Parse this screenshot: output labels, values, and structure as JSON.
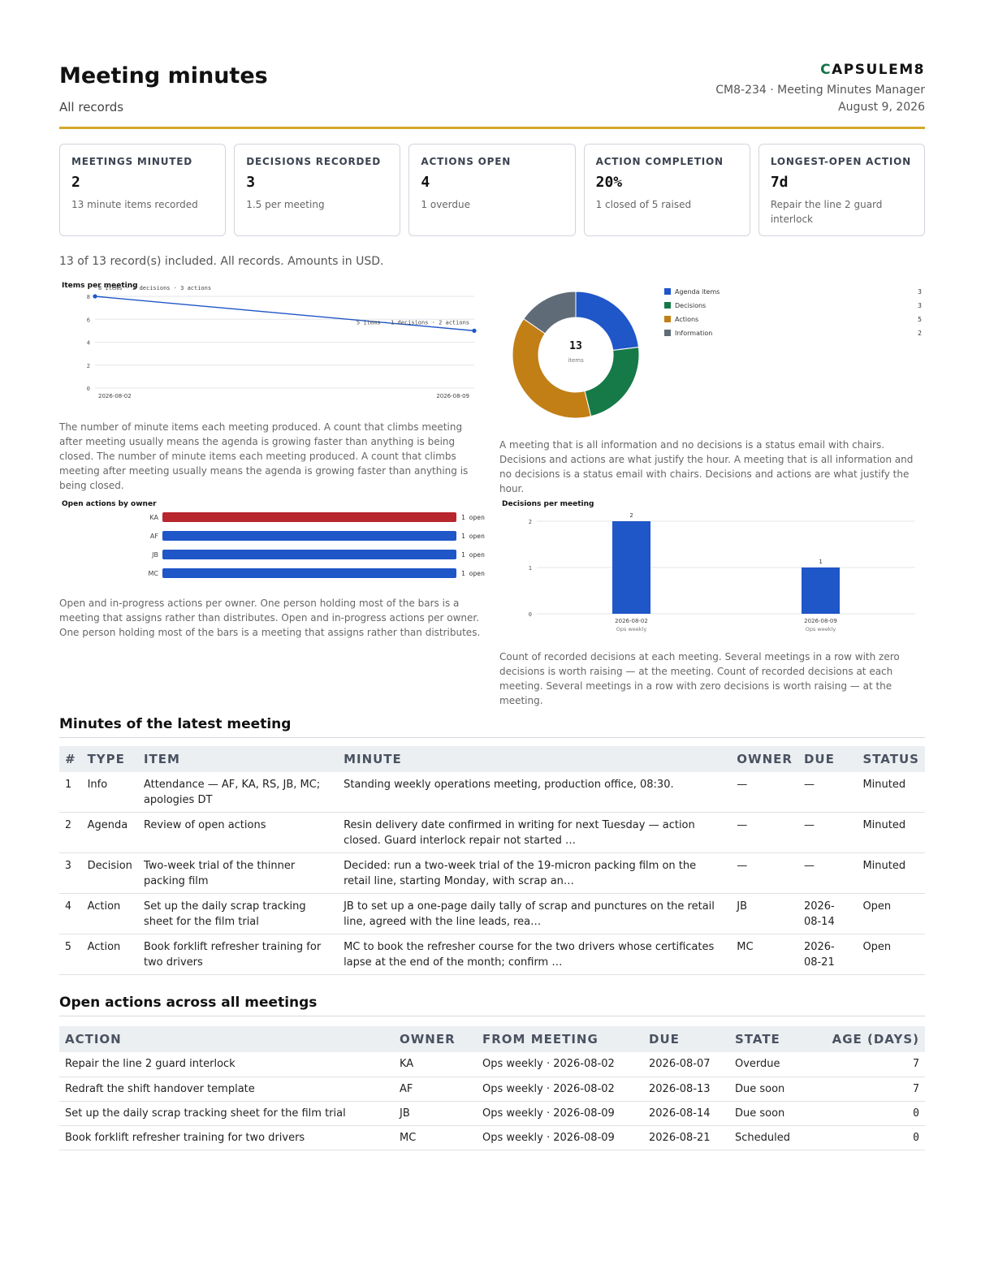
{
  "header": {
    "title": "Meeting minutes",
    "subtitle": "All records",
    "brand_c": "C",
    "brand_rest": "APSULEM8",
    "doc_ref": "CM8-234 · Meeting Minutes Manager",
    "date": "August 9, 2026"
  },
  "kpis": [
    {
      "label": "MEETINGS MINUTED",
      "value": "2",
      "note": "13 minute items recorded"
    },
    {
      "label": "DECISIONS RECORDED",
      "value": "3",
      "note": "1.5 per meeting"
    },
    {
      "label": "ACTIONS OPEN",
      "value": "4",
      "note": "1 overdue"
    },
    {
      "label": "ACTION COMPLETION",
      "value": "20%",
      "note": "1 closed of 5 raised"
    },
    {
      "label": "LONGEST-OPEN ACTION",
      "value": "7d",
      "note": "Repair the line 2 guard interlock"
    }
  ],
  "scope_note": "13 of 13 record(s) included. All records. Amounts in USD.",
  "captions": {
    "items": "The number of minute items each meeting produced. A count that climbs meeting after meeting usually means the agenda is growing faster than anything is being closed. The number of minute items each meeting produced. A count that climbs meeting after meeting usually means the agenda is growing faster than anything is being closed.",
    "donut": "A meeting that is all information and no decisions is a status email with chairs. Decisions and actions are what justify the hour. A meeting that is all information and no decisions is a status email with chairs. Decisions and actions are what justify the hour.",
    "owners": "Open and in-progress actions per owner. One person holding most of the bars is a meeting that assigns rather than distributes. Open and in-progress actions per owner. One person holding most of the bars is a meeting that assigns rather than distributes.",
    "decisions": "Count of recorded decisions at each meeting. Several meetings in a row with zero decisions is worth raising — at the meeting. Count of recorded decisions at each meeting. Several meetings in a row with zero decisions is worth raising — at the meeting."
  },
  "chart_data": [
    {
      "type": "line",
      "title": "Items per meeting",
      "x": [
        "2026-08-02",
        "2026-08-09"
      ],
      "series": [
        {
          "values": [
            8,
            5
          ]
        }
      ],
      "point_labels": [
        "8 items · 2 decisions · 3 actions",
        "5 items · 1 decisions · 2 actions"
      ],
      "yticks": [
        "0",
        "2",
        "4",
        "6",
        "8"
      ],
      "ylim": [
        0,
        8
      ],
      "color": "#1f56c8"
    },
    {
      "type": "pie",
      "title": "",
      "center_value": "13",
      "center_label": "items",
      "slices": [
        {
          "name": "Agenda items",
          "value": 3,
          "color": "#1f56c8"
        },
        {
          "name": "Decisions",
          "value": 3,
          "color": "#157a47"
        },
        {
          "name": "Actions",
          "value": 5,
          "color": "#c17f16"
        },
        {
          "name": "Information",
          "value": 2,
          "color": "#5f6b77"
        }
      ]
    },
    {
      "type": "bar",
      "title": "Open actions by owner",
      "categories": [
        "KA",
        "AF",
        "JB",
        "MC"
      ],
      "values": [
        1,
        1,
        1,
        1
      ],
      "value_labels": [
        "1 open",
        "1 open",
        "1 open",
        "1 open"
      ],
      "colors": [
        "#b8262e",
        "#1f56c8",
        "#1f56c8",
        "#1f56c8"
      ]
    },
    {
      "type": "bar",
      "title": "Decisions per meeting",
      "categories": [
        "2026-08-02",
        "2026-08-09"
      ],
      "sublabels": [
        "Ops weekly",
        "Ops weekly"
      ],
      "values": [
        2,
        1
      ],
      "yticks": [
        "0",
        "1",
        "2"
      ],
      "ylim": [
        0,
        2
      ],
      "color": "#1f56c8"
    }
  ],
  "latest": {
    "title": "Minutes of the latest meeting",
    "columns": [
      "#",
      "TYPE",
      "ITEM",
      "MINUTE",
      "OWNER",
      "DUE",
      "STATUS"
    ],
    "rows": [
      [
        "1",
        "Info",
        "Attendance — AF, KA, RS, JB, MC; apologies DT",
        "Standing weekly operations meeting, production office, 08:30.",
        "—",
        "—",
        "Minuted"
      ],
      [
        "2",
        "Agenda",
        "Review of open actions",
        "Resin delivery date confirmed in writing for next Tuesday — action closed. Guard interlock repair not started …",
        "—",
        "—",
        "Minuted"
      ],
      [
        "3",
        "Decision",
        "Two-week trial of the thinner packing film",
        "Decided: run a two-week trial of the 19-micron packing film on the retail line, starting Monday, with scrap an…",
        "—",
        "—",
        "Minuted"
      ],
      [
        "4",
        "Action",
        "Set up the daily scrap tracking sheet for the film trial",
        "JB to set up a one-page daily tally of scrap and punctures on the retail line, agreed with the line leads, rea…",
        "JB",
        "2026-08-14",
        "Open"
      ],
      [
        "5",
        "Action",
        "Book forklift refresher training for two drivers",
        "MC to book the refresher course for the two drivers whose certificates lapse at the end of the month; confirm …",
        "MC",
        "2026-08-21",
        "Open"
      ]
    ]
  },
  "open_actions": {
    "title": "Open actions across all meetings",
    "columns": [
      "ACTION",
      "OWNER",
      "FROM MEETING",
      "DUE",
      "STATE",
      "AGE (DAYS)"
    ],
    "rows": [
      [
        "Repair the line 2 guard interlock",
        "KA",
        "Ops weekly · 2026-08-02",
        "2026-08-07",
        "Overdue",
        "7"
      ],
      [
        "Redraft the shift handover template",
        "AF",
        "Ops weekly · 2026-08-02",
        "2026-08-13",
        "Due soon",
        "7"
      ],
      [
        "Set up the daily scrap tracking sheet for the film trial",
        "JB",
        "Ops weekly · 2026-08-09",
        "2026-08-14",
        "Due soon",
        "0"
      ],
      [
        "Book forklift refresher training for two drivers",
        "MC",
        "Ops weekly · 2026-08-09",
        "2026-08-21",
        "Scheduled",
        "0"
      ]
    ]
  }
}
